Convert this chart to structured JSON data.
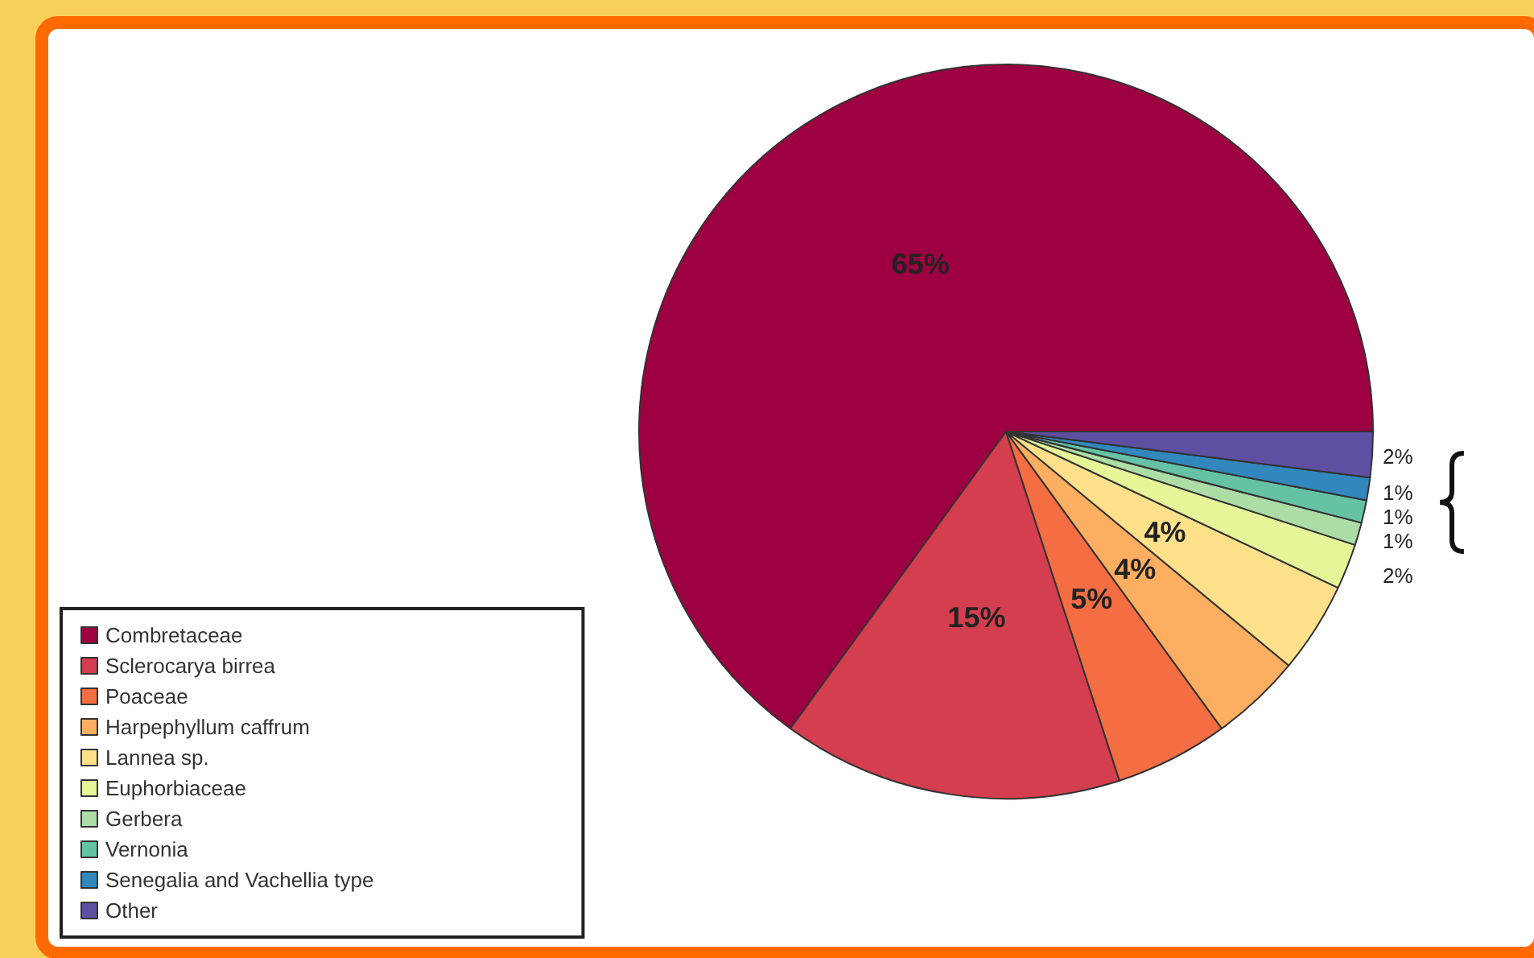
{
  "chart_data": {
    "type": "pie",
    "categories": [
      "Combretaceae",
      "Sclerocarya birrea",
      "Poaceae",
      "Harpephyllum caffrum",
      "Lannea sp.",
      "Euphorbiaceae",
      "Gerbera",
      "Vernonia",
      "Senegalia and Vachellia type",
      "Other"
    ],
    "values": [
      65,
      15,
      5,
      4,
      4,
      2,
      1,
      1,
      1,
      2
    ],
    "value_labels": [
      "65%",
      "15%",
      "5%",
      "4%",
      "4%",
      "2%",
      "1%",
      "1%",
      "1%",
      "2%"
    ],
    "colors": [
      "#9e0142",
      "#d53e4f",
      "#f46d43",
      "#fdae61",
      "#fee08b",
      "#e6f598",
      "#abdda4",
      "#66c2a5",
      "#3288bd",
      "#5e4fa2"
    ],
    "legend": "bottom left"
  }
}
